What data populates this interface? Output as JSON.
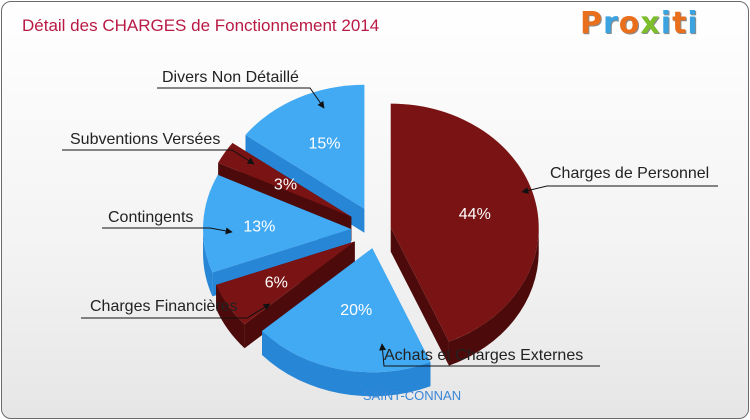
{
  "title": "Détail des CHARGES de Fonctionnement 2014",
  "logo": {
    "text": "Proxiti",
    "letters": [
      "P",
      "r",
      "o",
      "x",
      "i",
      "t",
      "i"
    ]
  },
  "location": "SAINT-CONNAN",
  "colors": {
    "blue": "#42a9f3",
    "blue_side": "#2786d6",
    "red": "#7a1414",
    "red_side": "#4d0a0a",
    "title": "#b81a45"
  },
  "chart_data": {
    "type": "pie",
    "title": "Détail des CHARGES de Fonctionnement 2014",
    "unit": "%",
    "slices": [
      {
        "label": "Charges de Personnel",
        "value": 44,
        "value_label": "44%",
        "color": "red"
      },
      {
        "label": "Achats et Charges Externes",
        "value": 20,
        "value_label": "20%",
        "color": "blue"
      },
      {
        "label": "Charges Financières",
        "value": 6,
        "value_label": "6%",
        "color": "red"
      },
      {
        "label": "Contingents",
        "value": 13,
        "value_label": "13%",
        "color": "blue"
      },
      {
        "label": "Subventions Versées",
        "value": 3,
        "value_label": "3%",
        "color": "red"
      },
      {
        "label": "Divers Non Détaillé",
        "value": 15,
        "value_label": "15%",
        "color": "blue"
      }
    ]
  }
}
